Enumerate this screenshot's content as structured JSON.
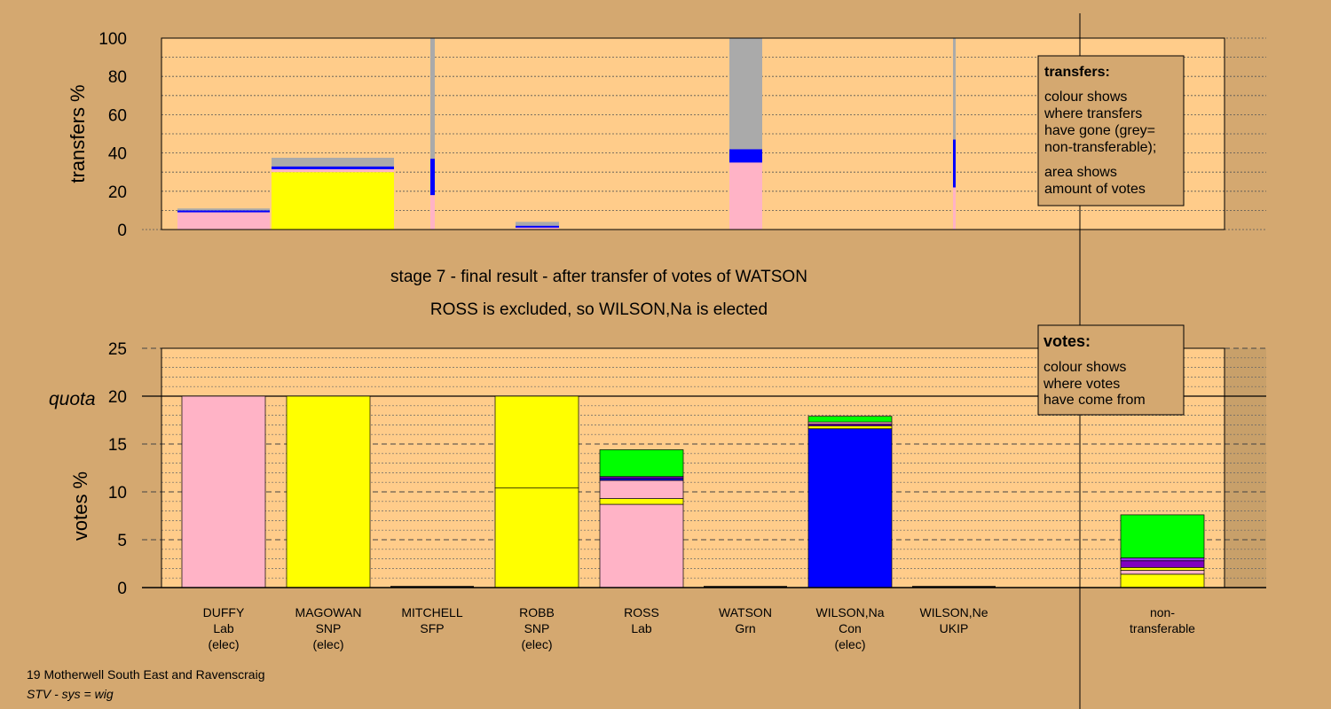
{
  "chart_data": [
    {
      "type": "bar",
      "ylabel": "transfers %",
      "ylim": [
        0,
        100
      ],
      "yticks": [
        0,
        20,
        40,
        60,
        80,
        100
      ],
      "candidates": [
        "DUFFY",
        "MAGOWAN",
        "MITCHELL",
        "ROBB",
        "ROSS",
        "WATSON",
        "WILSON,Na",
        "WILSON,Ne"
      ],
      "bars": [
        {
          "candidate": "DUFFY",
          "segments": [
            {
              "color": "#ffb3c6",
              "value": 9
            },
            {
              "color": "#0000ff",
              "value": 1
            },
            {
              "color": "#aaaaaa",
              "value": 1
            }
          ]
        },
        {
          "candidate": "MAGOWAN",
          "segments": [
            {
              "color": "#ffff00",
              "value": 30
            },
            {
              "color": "#ffb3c6",
              "value": 1.5
            },
            {
              "color": "#0000ff",
              "value": 1.5
            },
            {
              "color": "#aaaaaa",
              "value": 4.5
            }
          ]
        },
        {
          "candidate": "MITCHELL",
          "segments": [
            {
              "color": "#ffb3c6",
              "value": 18
            },
            {
              "color": "#0000ff",
              "value": 19
            },
            {
              "color": "#aaaaaa",
              "value": 63
            }
          ]
        },
        {
          "candidate": "ROBB",
          "segments": [
            {
              "color": "#ffb3c6",
              "value": 1
            },
            {
              "color": "#0000ff",
              "value": 1
            },
            {
              "color": "#aaaaaa",
              "value": 2
            }
          ]
        },
        {
          "candidate": "WATSON",
          "segments": [
            {
              "color": "#ffb3c6",
              "value": 35
            },
            {
              "color": "#0000ff",
              "value": 7
            },
            {
              "color": "#aaaaaa",
              "value": 58
            }
          ]
        },
        {
          "candidate": "WILSON,Ne",
          "segments": [
            {
              "color": "#ffb3c6",
              "value": 22
            },
            {
              "color": "#0000ff",
              "value": 25
            },
            {
              "color": "#aaaaaa",
              "value": 53
            }
          ]
        }
      ],
      "legend": {
        "title": "transfers:",
        "lines1": [
          "colour shows",
          "where transfers",
          "have gone (grey=",
          "non-transferable);"
        ],
        "lines2": [
          "area shows",
          "amount of votes"
        ]
      }
    },
    {
      "type": "bar",
      "ylabel": "votes %",
      "ylim": [
        0,
        25
      ],
      "yticks": [
        0,
        5,
        10,
        15,
        20,
        25
      ],
      "quota_label": "quota",
      "quota": 20,
      "categories": [
        {
          "name": "DUFFY",
          "party": "Lab",
          "status": "(elec)"
        },
        {
          "name": "MAGOWAN",
          "party": "SNP",
          "status": "(elec)"
        },
        {
          "name": "MITCHELL",
          "party": "SFP",
          "status": ""
        },
        {
          "name": "ROBB",
          "party": "SNP",
          "status": "(elec)"
        },
        {
          "name": "ROSS",
          "party": "Lab",
          "status": ""
        },
        {
          "name": "WATSON",
          "party": "Grn",
          "status": ""
        },
        {
          "name": "WILSON,Na",
          "party": "Con",
          "status": "(elec)"
        },
        {
          "name": "WILSON,Ne",
          "party": "UKIP",
          "status": ""
        }
      ],
      "nontransferable_label": [
        "non-",
        "transferable"
      ],
      "bars": [
        {
          "candidate": "DUFFY",
          "segments": [
            {
              "color": "#ffb3c6",
              "value": 20
            }
          ]
        },
        {
          "candidate": "MAGOWAN",
          "segments": [
            {
              "color": "#ffff00",
              "value": 20
            }
          ]
        },
        {
          "candidate": "MITCHELL",
          "segments": []
        },
        {
          "candidate": "ROBB",
          "segments": [
            {
              "color": "#ffff00",
              "value": 10.4
            },
            {
              "color": "#ffff00",
              "value": 9.6
            }
          ]
        },
        {
          "candidate": "ROSS",
          "segments": [
            {
              "color": "#ffb3c6",
              "value": 8.7
            },
            {
              "color": "#ffff00",
              "value": 0.6
            },
            {
              "color": "#ffb3c6",
              "value": 1.9
            },
            {
              "color": "#0000ff",
              "value": 0.2
            },
            {
              "color": "#8000c0",
              "value": 0.2
            },
            {
              "color": "#00ff00",
              "value": 2.8
            }
          ]
        },
        {
          "candidate": "WATSON",
          "segments": []
        },
        {
          "candidate": "WILSON,Na",
          "segments": [
            {
              "color": "#0000ff",
              "value": 16.6
            },
            {
              "color": "#ffff00",
              "value": 0.3
            },
            {
              "color": "#8000c0",
              "value": 0.2
            },
            {
              "color": "#ffb3c6",
              "value": 0.2
            },
            {
              "color": "#00ff00",
              "value": 0.6
            }
          ]
        },
        {
          "candidate": "WILSON,Ne",
          "segments": []
        },
        {
          "candidate": "non-transferable",
          "segments": [
            {
              "color": "#ffff00",
              "value": 1.4
            },
            {
              "color": "#ffb3c6",
              "value": 0.4
            },
            {
              "color": "#ffff00",
              "value": 0.3
            },
            {
              "color": "#8000c0",
              "value": 0.7
            },
            {
              "color": "#9b30ff",
              "value": 0.3
            },
            {
              "color": "#00ff00",
              "value": 4.5
            }
          ]
        }
      ],
      "legend": {
        "title": "votes:",
        "lines": [
          "colour shows",
          "where votes",
          "have come from"
        ]
      }
    }
  ],
  "stage_text": "stage 7 - final result - after transfer of votes of WATSON",
  "result_text": "ROSS is excluded, so WILSON,Na is elected",
  "footer": {
    "constituency": "19 Motherwell South East and Ravenscraig",
    "system": "STV - sys = wig"
  },
  "colors": {
    "background": "#d4a870",
    "plot": "#ffcc8a"
  }
}
